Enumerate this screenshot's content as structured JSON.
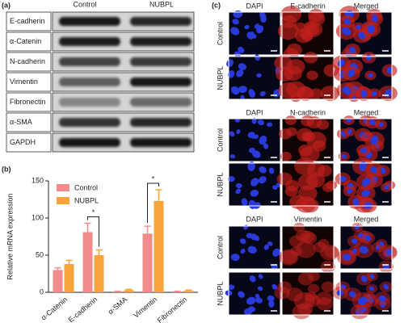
{
  "panel_a": {
    "label": "(a)",
    "columns": [
      "Control",
      "NUBPL"
    ],
    "rows": [
      "E-cadherin",
      "α-Catenin",
      "N-cadherin",
      "Vimentin",
      "Fibronectin",
      "α-SMA",
      "GAPDH"
    ]
  },
  "chart_data": {
    "type": "bar",
    "label": "(b)",
    "y_label": "Relative mRNA expression",
    "categories": [
      "α-Catenin",
      "E-cadherin",
      "α-SMA",
      "Vimentin",
      "Fibronectin"
    ],
    "series": [
      {
        "name": "Control",
        "color": "#f28b8b",
        "values": [
          30,
          81,
          1,
          79,
          1
        ],
        "errors": [
          3,
          12,
          0.5,
          10,
          0.5
        ]
      },
      {
        "name": "NUBPL",
        "color": "#f7a43c",
        "values": [
          38,
          50,
          3,
          123,
          2
        ],
        "errors": [
          5,
          7,
          1,
          15,
          1
        ]
      }
    ],
    "ylim": [
      0,
      150
    ],
    "yticks": [
      0,
      50,
      100,
      150
    ],
    "annotations": [
      {
        "text": "*",
        "category": "E-cadherin"
      },
      {
        "text": "*",
        "category": "Vimentin"
      }
    ]
  },
  "panel_c": {
    "label": "(c)",
    "groups": [
      {
        "columns": [
          "DAPI",
          "E-cadherin",
          "Merged"
        ],
        "rows": [
          "Control",
          "NUBPL"
        ]
      },
      {
        "columns": [
          "DAPI",
          "N-cadherin",
          "Merged"
        ],
        "rows": [
          "Control",
          "NUBPL"
        ]
      },
      {
        "columns": [
          "DAPI",
          "Vimentin",
          "Merged"
        ],
        "rows": [
          "Control",
          "NUBPL"
        ]
      }
    ]
  }
}
